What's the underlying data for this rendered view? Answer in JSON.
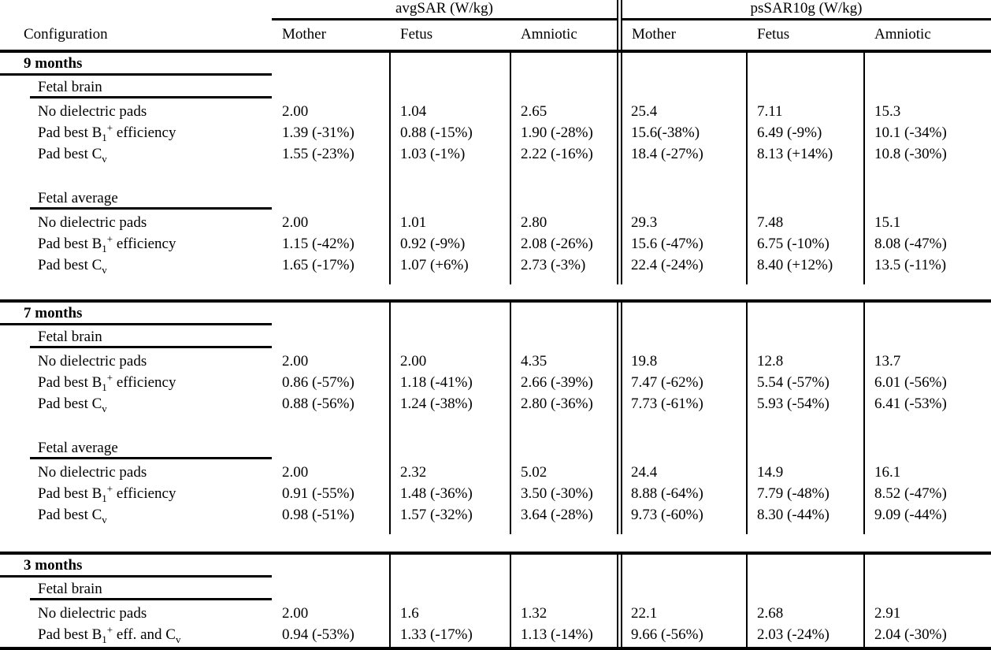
{
  "table": {
    "type": "table",
    "col_header": "Configuration",
    "groups": [
      {
        "label": "avgSAR (W/kg)",
        "columns": [
          "Mother",
          "Fetus",
          "Amniotic"
        ]
      },
      {
        "label": "psSAR10g (W/kg)",
        "columns": [
          "Mother",
          "Fetus",
          "Amniotic"
        ]
      }
    ],
    "blocks": [
      {
        "title": "9 months",
        "subsections": [
          {
            "name": "Fetal brain",
            "rows": [
              {
                "label": [
                  {
                    "t": "No dielectric pads"
                  }
                ],
                "values": [
                  "2.00",
                  "1.04",
                  "2.65",
                  "25.4",
                  "7.11",
                  "15.3"
                ]
              },
              {
                "label": [
                  {
                    "t": "Pad best B"
                  },
                  {
                    "t": "1",
                    "s": "sub"
                  },
                  {
                    "t": "+",
                    "s": "sup"
                  },
                  {
                    "t": " efficiency"
                  }
                ],
                "values": [
                  "1.39 (-31%)",
                  "0.88 (-15%)",
                  "1.90 (-28%)",
                  "15.6(-38%)",
                  "6.49 (-9%)",
                  "10.1 (-34%)"
                ]
              },
              {
                "label": [
                  {
                    "t": "Pad best C"
                  },
                  {
                    "t": "v",
                    "s": "sub"
                  }
                ],
                "values": [
                  "1.55 (-23%)",
                  "1.03 (-1%)",
                  "2.22 (-16%)",
                  "18.4 (-27%)",
                  "8.13 (+14%)",
                  "10.8 (-30%)"
                ]
              }
            ]
          },
          {
            "name": "Fetal average",
            "rows": [
              {
                "label": [
                  {
                    "t": "No dielectric pads"
                  }
                ],
                "values": [
                  "2.00",
                  "1.01",
                  "2.80",
                  "29.3",
                  "7.48",
                  "15.1"
                ]
              },
              {
                "label": [
                  {
                    "t": "Pad best B"
                  },
                  {
                    "t": "1",
                    "s": "sub"
                  },
                  {
                    "t": "+",
                    "s": "sup"
                  },
                  {
                    "t": " efficiency"
                  }
                ],
                "values": [
                  "1.15 (-42%)",
                  "0.92 (-9%)",
                  "2.08 (-26%)",
                  "15.6 (-47%)",
                  "6.75 (-10%)",
                  "8.08 (-47%)"
                ]
              },
              {
                "label": [
                  {
                    "t": "Pad best C"
                  },
                  {
                    "t": "v",
                    "s": "sub"
                  }
                ],
                "values": [
                  "1.65 (-17%)",
                  "1.07 (+6%)",
                  "2.73 (-3%)",
                  "22.4 (-24%)",
                  "8.40 (+12%)",
                  "13.5 (-11%)"
                ]
              }
            ]
          }
        ]
      },
      {
        "title": "7 months",
        "subsections": [
          {
            "name": "Fetal brain",
            "rows": [
              {
                "label": [
                  {
                    "t": "No dielectric pads"
                  }
                ],
                "values": [
                  "2.00",
                  "2.00",
                  "4.35",
                  "19.8",
                  "12.8",
                  "13.7"
                ]
              },
              {
                "label": [
                  {
                    "t": "Pad best B"
                  },
                  {
                    "t": "1",
                    "s": "sub"
                  },
                  {
                    "t": "+",
                    "s": "sup"
                  },
                  {
                    "t": " efficiency"
                  }
                ],
                "values": [
                  "0.86 (-57%)",
                  "1.18 (-41%)",
                  "2.66 (-39%)",
                  "7.47 (-62%)",
                  "5.54 (-57%)",
                  "6.01 (-56%)"
                ]
              },
              {
                "label": [
                  {
                    "t": "Pad best C"
                  },
                  {
                    "t": "v",
                    "s": "sub"
                  }
                ],
                "values": [
                  "0.88 (-56%)",
                  "1.24 (-38%)",
                  "2.80 (-36%)",
                  "7.73 (-61%)",
                  "5.93 (-54%)",
                  "6.41 (-53%)"
                ]
              }
            ]
          },
          {
            "name": "Fetal average",
            "rows": [
              {
                "label": [
                  {
                    "t": "No dielectric pads"
                  }
                ],
                "values": [
                  "2.00",
                  "2.32",
                  "5.02",
                  "24.4",
                  "14.9",
                  "16.1"
                ]
              },
              {
                "label": [
                  {
                    "t": "Pad best B"
                  },
                  {
                    "t": "1",
                    "s": "sub"
                  },
                  {
                    "t": "+",
                    "s": "sup"
                  },
                  {
                    "t": " efficiency"
                  }
                ],
                "values": [
                  "0.91 (-55%)",
                  "1.48 (-36%)",
                  "3.50 (-30%)",
                  "8.88 (-64%)",
                  "7.79 (-48%)",
                  "8.52 (-47%)"
                ]
              },
              {
                "label": [
                  {
                    "t": "Pad best C"
                  },
                  {
                    "t": "v",
                    "s": "sub"
                  }
                ],
                "values": [
                  "0.98 (-51%)",
                  "1.57 (-32%)",
                  "3.64 (-28%)",
                  "9.73 (-60%)",
                  "8.30 (-44%)",
                  "9.09 (-44%)"
                ]
              }
            ]
          }
        ]
      },
      {
        "title": "3 months",
        "subsections": [
          {
            "name": "Fetal brain",
            "rows": [
              {
                "label": [
                  {
                    "t": "No dielectric pads"
                  }
                ],
                "values": [
                  "2.00",
                  "1.6",
                  "1.32",
                  "22.1",
                  "2.68",
                  "2.91"
                ]
              },
              {
                "label": [
                  {
                    "t": "Pad best B"
                  },
                  {
                    "t": "1",
                    "s": "sub"
                  },
                  {
                    "t": "+",
                    "s": "sup"
                  },
                  {
                    "t": " eff. and C"
                  },
                  {
                    "t": "v",
                    "s": "sub"
                  }
                ],
                "values": [
                  "0.94 (-53%)",
                  "1.33 (-17%)",
                  "1.13 (-14%)",
                  "9.66 (-56%)",
                  "2.03 (-24%)",
                  "2.04 (-30%)"
                ]
              }
            ]
          }
        ]
      }
    ]
  }
}
